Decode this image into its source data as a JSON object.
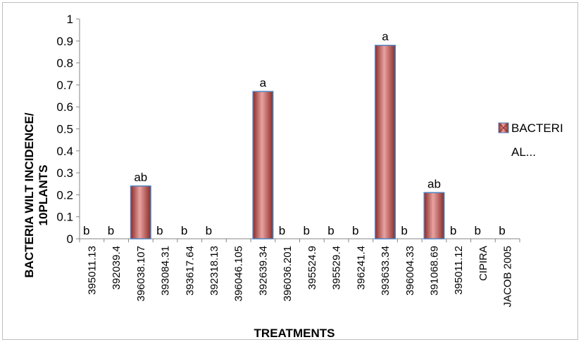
{
  "chart_data": {
    "type": "bar",
    "xlabel": "TREATMENTS",
    "ylabel_lines": [
      "BACTERIA  WILT  INCIDENCE/",
      "10PLANTS"
    ],
    "ylim": [
      0,
      1
    ],
    "yticks": [
      "0",
      "0.1",
      "0.2",
      "0.3",
      "0.4",
      "0.5",
      "0.6",
      "0.7",
      "0.8",
      "0.9",
      "1"
    ],
    "categories": [
      "395011.13",
      "392039.4",
      "396038.107",
      "393084.31",
      "393617.64",
      "392318.13",
      "396046.105",
      "392639.34",
      "396036.201",
      "395524.9",
      "395529.4",
      "396241.4",
      "393633.34",
      "396004.33",
      "391068.69",
      "395011.12",
      "CIPIRA",
      "JACOB 2005"
    ],
    "series": [
      {
        "name": "BACTERIAL...",
        "values": [
          0,
          0,
          0.24,
          0,
          0,
          0,
          0,
          0.67,
          0,
          0,
          0,
          0,
          0.88,
          0,
          0.21,
          0,
          0,
          0
        ]
      }
    ],
    "significance_labels": [
      "b",
      "b",
      "ab",
      "b",
      "b",
      "b",
      "",
      "a",
      "b",
      "b",
      "b",
      "b",
      "a",
      "b",
      "ab",
      "b",
      "b",
      "b"
    ],
    "legend": {
      "position": "right",
      "lines": [
        "BACTERI",
        "AL..."
      ]
    },
    "colors": {
      "bar_fill": "#c0504d",
      "bar_light": "#e8a3a1",
      "bar_dark": "#8c2b28",
      "bar_edge": "#4f81bd"
    }
  }
}
